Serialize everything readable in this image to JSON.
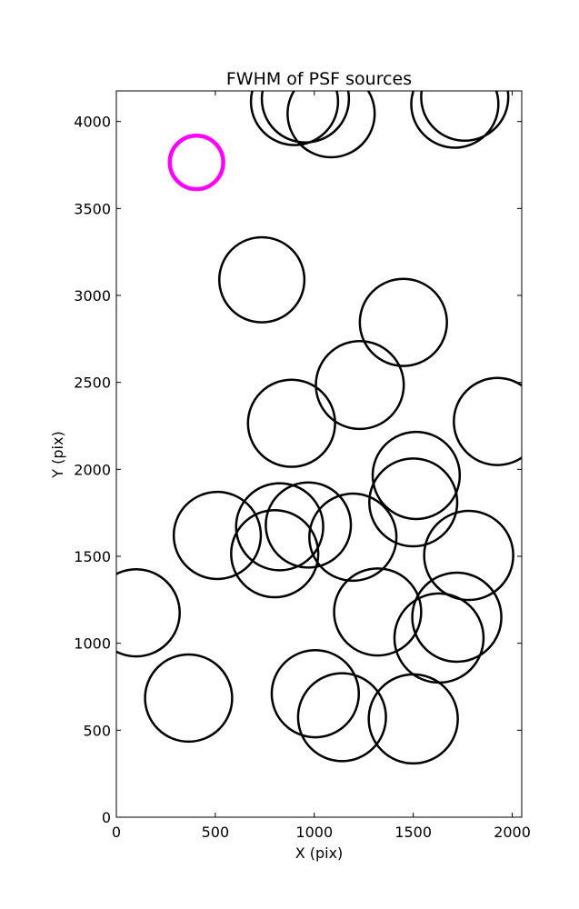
{
  "chart_data": {
    "type": "scatter",
    "title": "FWHM of PSF sources",
    "xlabel": "X (pix)",
    "ylabel": "Y (pix)",
    "xlim": [
      0,
      2048
    ],
    "ylim": [
      0,
      4176
    ],
    "xticks": [
      0,
      500,
      1000,
      1500,
      2000
    ],
    "yticks": [
      0,
      500,
      1000,
      1500,
      2000,
      2500,
      3000,
      3500,
      4000
    ],
    "grid": false,
    "marker": "circle (radius proportional to FWHM)",
    "colors": {
      "sources": "#000000",
      "reference": "#ff00ff"
    },
    "reference_source": {
      "x": 405,
      "y": 3765,
      "radius": 135
    },
    "sources": [
      {
        "x": 900,
        "y": 4115,
        "radius": 220
      },
      {
        "x": 955,
        "y": 4130,
        "radius": 220
      },
      {
        "x": 1085,
        "y": 4045,
        "radius": 220
      },
      {
        "x": 1710,
        "y": 4100,
        "radius": 220
      },
      {
        "x": 1760,
        "y": 4140,
        "radius": 220
      },
      {
        "x": 735,
        "y": 3090,
        "radius": 215
      },
      {
        "x": 1450,
        "y": 2845,
        "radius": 220
      },
      {
        "x": 1230,
        "y": 2485,
        "radius": 222
      },
      {
        "x": 885,
        "y": 2265,
        "radius": 220
      },
      {
        "x": 1925,
        "y": 2275,
        "radius": 220
      },
      {
        "x": 1515,
        "y": 1965,
        "radius": 220
      },
      {
        "x": 1500,
        "y": 1810,
        "radius": 222
      },
      {
        "x": 510,
        "y": 1620,
        "radius": 220
      },
      {
        "x": 825,
        "y": 1670,
        "radius": 220
      },
      {
        "x": 970,
        "y": 1680,
        "radius": 215
      },
      {
        "x": 1195,
        "y": 1610,
        "radius": 220
      },
      {
        "x": 800,
        "y": 1515,
        "radius": 220
      },
      {
        "x": 1780,
        "y": 1505,
        "radius": 225
      },
      {
        "x": 100,
        "y": 1175,
        "radius": 220
      },
      {
        "x": 1320,
        "y": 1180,
        "radius": 220
      },
      {
        "x": 1720,
        "y": 1150,
        "radius": 225
      },
      {
        "x": 1630,
        "y": 1030,
        "radius": 225
      },
      {
        "x": 365,
        "y": 685,
        "radius": 220
      },
      {
        "x": 1005,
        "y": 710,
        "radius": 220
      },
      {
        "x": 1140,
        "y": 575,
        "radius": 222
      },
      {
        "x": 1500,
        "y": 565,
        "radius": 225
      }
    ]
  }
}
